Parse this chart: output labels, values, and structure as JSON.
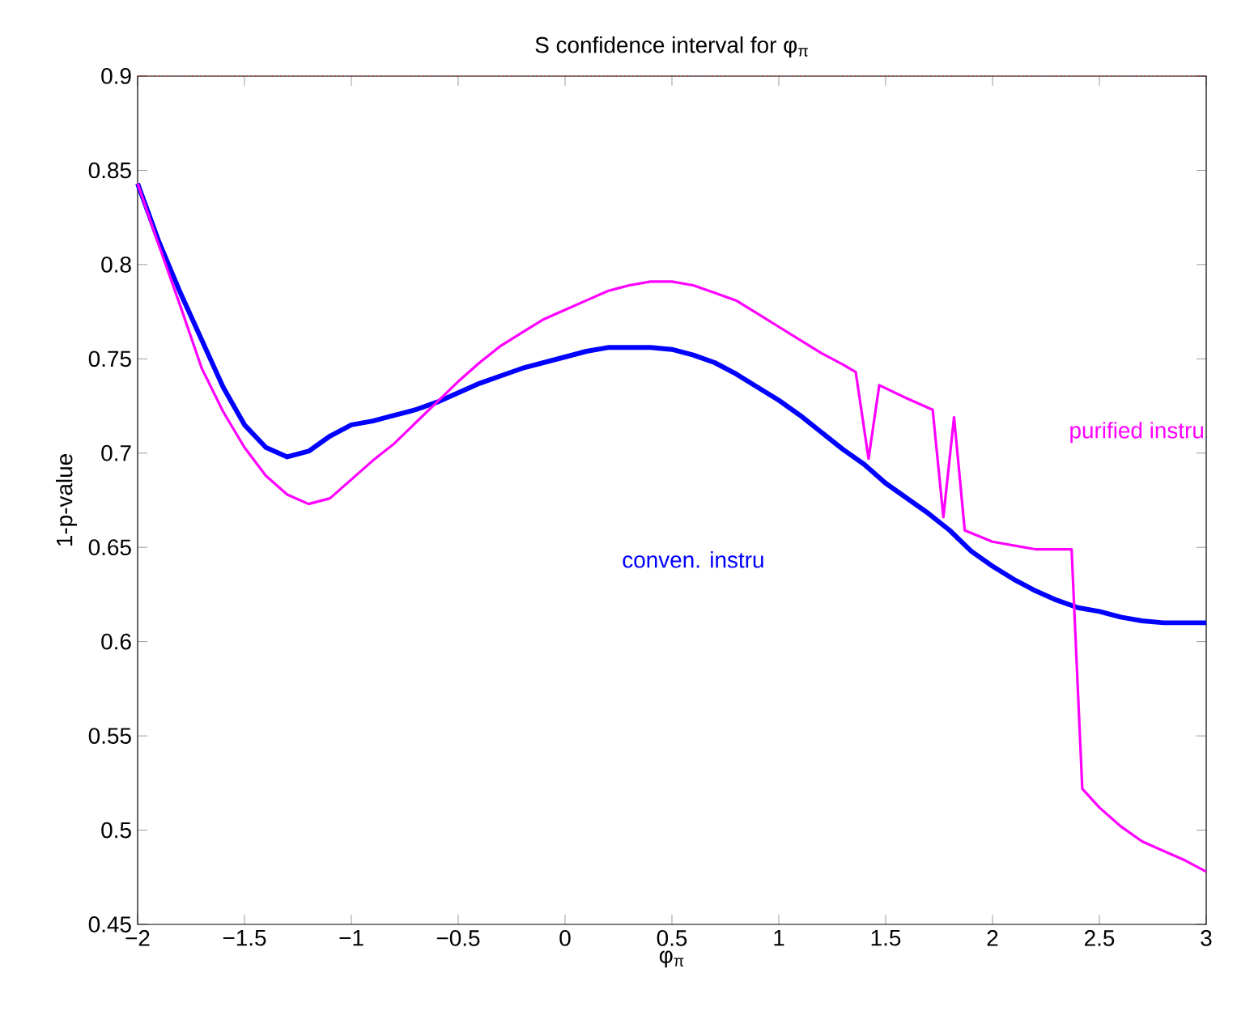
{
  "chart_data": {
    "type": "line",
    "title": "S confidence interval for φ$_{π}$",
    "xlabel": "φ$_{π}$",
    "ylabel": "1-p-value",
    "xlim": [
      -2,
      3
    ],
    "ylim": [
      0.45,
      0.9
    ],
    "xticks": [
      {
        "value": -2,
        "label": "−2"
      },
      {
        "value": -1.5,
        "label": "−1.5"
      },
      {
        "value": -1,
        "label": "−1"
      },
      {
        "value": -0.5,
        "label": "−0.5"
      },
      0,
      0.5,
      1,
      1.5,
      2,
      2.5,
      3
    ],
    "yticks": [
      0.45,
      0.5,
      0.55,
      0.6,
      0.65,
      0.7,
      0.75,
      0.8,
      0.85,
      0.9
    ],
    "grid": false,
    "legend": false,
    "marker": "none",
    "line_style": "solid",
    "ref_lines": [
      {
        "axis": "y",
        "value": 0.9,
        "color": "#ff0000",
        "line_style": "dotted"
      }
    ],
    "series": [
      {
        "name": "conven. instru",
        "color": "#0000ff",
        "x": [
          -2,
          -1.9,
          -1.8,
          -1.7,
          -1.6,
          -1.5,
          -1.4,
          -1.3,
          -1.2,
          -1.1,
          -1,
          -0.9,
          -0.8,
          -0.7,
          -0.6,
          -0.5,
          -0.4,
          -0.3,
          -0.2,
          -0.1,
          0,
          0.1,
          0.2,
          0.3,
          0.4,
          0.5,
          0.6,
          0.7,
          0.8,
          0.9,
          1,
          1.1,
          1.2,
          1.3,
          1.4,
          1.5,
          1.6,
          1.7,
          1.8,
          1.9,
          2,
          2.1,
          2.2,
          2.3,
          2.4,
          2.5,
          2.6,
          2.7,
          2.8,
          2.9,
          3
        ],
        "values": [
          0.843,
          0.812,
          0.785,
          0.76,
          0.735,
          0.715,
          0.703,
          0.698,
          0.701,
          0.709,
          0.715,
          0.717,
          0.72,
          0.723,
          0.727,
          0.732,
          0.737,
          0.741,
          0.745,
          0.748,
          0.751,
          0.754,
          0.756,
          0.756,
          0.756,
          0.755,
          0.752,
          0.748,
          0.742,
          0.735,
          0.728,
          0.72,
          0.711,
          0.702,
          0.694,
          0.684,
          0.676,
          0.668,
          0.659,
          0.648,
          0.64,
          0.633,
          0.627,
          0.622,
          0.618,
          0.616,
          0.613,
          0.611,
          0.61,
          0.61,
          0.61
        ]
      },
      {
        "name": "purified instru",
        "color": "#ff00ff",
        "x": [
          -2,
          -1.9,
          -1.8,
          -1.7,
          -1.6,
          -1.5,
          -1.4,
          -1.3,
          -1.2,
          -1.1,
          -1,
          -0.9,
          -0.8,
          -0.7,
          -0.6,
          -0.5,
          -0.4,
          -0.3,
          -0.2,
          -0.1,
          0,
          0.1,
          0.2,
          0.3,
          0.4,
          0.5,
          0.6,
          0.7,
          0.8,
          0.9,
          1,
          1.1,
          1.2,
          1.3,
          1.36,
          1.42,
          1.47,
          1.6,
          1.72,
          1.77,
          1.82,
          1.87,
          2,
          2.1,
          2.2,
          2.3,
          2.37,
          2.42,
          2.5,
          2.6,
          2.7,
          2.8,
          2.9,
          3
        ],
        "values": [
          0.843,
          0.81,
          0.778,
          0.745,
          0.722,
          0.703,
          0.688,
          0.678,
          0.673,
          0.676,
          0.686,
          0.696,
          0.705,
          0.716,
          0.727,
          0.738,
          0.748,
          0.757,
          0.764,
          0.771,
          0.776,
          0.781,
          0.786,
          0.789,
          0.791,
          0.791,
          0.789,
          0.785,
          0.781,
          0.774,
          0.767,
          0.76,
          0.753,
          0.747,
          0.743,
          0.697,
          0.736,
          0.729,
          0.723,
          0.666,
          0.719,
          0.659,
          0.653,
          0.651,
          0.649,
          0.649,
          0.649,
          0.522,
          0.512,
          0.502,
          0.494,
          0.489,
          0.484,
          0.478
        ]
      }
    ]
  }
}
